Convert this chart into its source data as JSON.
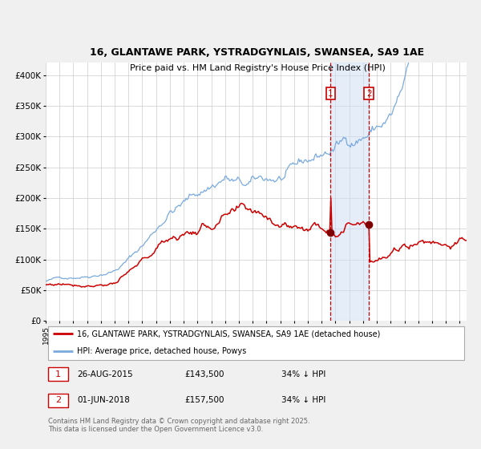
{
  "title": "16, GLANTAWE PARK, YSTRADGYNLAIS, SWANSEA, SA9 1AE",
  "subtitle": "Price paid vs. HM Land Registry's House Price Index (HPI)",
  "red_label": "16, GLANTAWE PARK, YSTRADGYNLAIS, SWANSEA, SA9 1AE (detached house)",
  "blue_label": "HPI: Average price, detached house, Powys",
  "annotation1_date": "26-AUG-2015",
  "annotation1_price": "£143,500",
  "annotation1_hpi": "34% ↓ HPI",
  "annotation1_year": 2015.65,
  "annotation1_value": 143500,
  "annotation2_date": "01-JUN-2018",
  "annotation2_price": "£157,500",
  "annotation2_hpi": "34% ↓ HPI",
  "annotation2_year": 2018.42,
  "annotation2_value": 157500,
  "footer": "Contains HM Land Registry data © Crown copyright and database right 2025.\nThis data is licensed under the Open Government Licence v3.0.",
  "ylim": [
    0,
    420000
  ],
  "xlim_start": 1995.0,
  "xlim_end": 2025.5,
  "background_color": "#f0f0f0",
  "plot_background": "#ffffff",
  "grid_color": "#cccccc",
  "red_color": "#cc0000",
  "blue_color": "#7aaadd",
  "shade_color": "#ccddf5",
  "vline_color": "#cc0000",
  "label_color_dark": "#333333",
  "footer_color": "#666666"
}
